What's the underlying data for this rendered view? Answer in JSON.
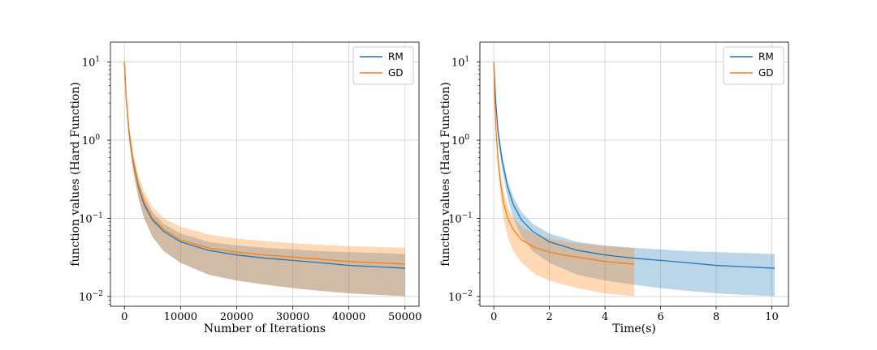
{
  "colors": {
    "rm": "#1f77b4",
    "gd": "#ff7f0e",
    "grid": "#d0d0d0"
  },
  "chart_data": [
    {
      "type": "line",
      "name": "iterations",
      "xlabel": "Number of Iterations",
      "ylabel": "function values (Hard Function)",
      "xlim": [
        -2500,
        52500
      ],
      "ylim": [
        0.0075,
        18
      ],
      "yscale": "log",
      "xticks": [
        0,
        10000,
        20000,
        30000,
        40000,
        50000
      ],
      "xticklabels": [
        "0",
        "10000",
        "20000",
        "30000",
        "40000",
        "50000"
      ],
      "yticks": [
        0.01,
        0.1,
        1,
        10
      ],
      "ytick_bases": [
        "10",
        "10",
        "10",
        "10"
      ],
      "ytick_exps": [
        "−2",
        "−1",
        "0",
        "1"
      ],
      "legend": [
        "RM",
        "GD"
      ],
      "legend_position": "top-right",
      "series": [
        {
          "name": "RM",
          "color_key": "rm",
          "x": [
            0,
            300,
            800,
            1500,
            2500,
            3500,
            5000,
            7000,
            10000,
            15000,
            20000,
            25000,
            30000,
            35000,
            40000,
            45000,
            50000
          ],
          "y": [
            10,
            3.5,
            1.3,
            0.55,
            0.25,
            0.15,
            0.095,
            0.068,
            0.05,
            0.039,
            0.034,
            0.031,
            0.029,
            0.027,
            0.025,
            0.024,
            0.023
          ],
          "lower": [
            10,
            3.0,
            1.0,
            0.42,
            0.18,
            0.1,
            0.058,
            0.038,
            0.027,
            0.019,
            0.016,
            0.0142,
            0.0128,
            0.0118,
            0.011,
            0.0105,
            0.0101
          ],
          "upper": [
            10,
            4.0,
            1.5,
            0.65,
            0.3,
            0.19,
            0.12,
            0.085,
            0.064,
            0.05,
            0.045,
            0.042,
            0.04,
            0.038,
            0.037,
            0.036,
            0.035
          ]
        },
        {
          "name": "GD",
          "color_key": "gd",
          "x": [
            0,
            300,
            800,
            1500,
            2500,
            3500,
            5000,
            7000,
            10000,
            15000,
            20000,
            25000,
            30000,
            35000,
            40000,
            45000,
            50000
          ],
          "y": [
            10,
            3.6,
            1.35,
            0.58,
            0.27,
            0.16,
            0.1,
            0.072,
            0.053,
            0.042,
            0.037,
            0.034,
            0.032,
            0.03,
            0.028,
            0.027,
            0.026
          ],
          "lower": [
            10,
            3.0,
            1.0,
            0.42,
            0.18,
            0.1,
            0.058,
            0.038,
            0.027,
            0.019,
            0.016,
            0.0142,
            0.0128,
            0.0118,
            0.011,
            0.0105,
            0.0101
          ],
          "upper": [
            10,
            4.2,
            1.6,
            0.72,
            0.35,
            0.22,
            0.14,
            0.1,
            0.078,
            0.062,
            0.055,
            0.051,
            0.048,
            0.046,
            0.044,
            0.043,
            0.042
          ]
        }
      ]
    },
    {
      "type": "line",
      "name": "time",
      "xlabel": "Time(s)",
      "ylabel": "function values (Hard Function)",
      "xlim": [
        -0.5,
        10.6
      ],
      "ylim": [
        0.0075,
        18
      ],
      "yscale": "log",
      "xticks": [
        0,
        2,
        4,
        6,
        8,
        10
      ],
      "xticklabels": [
        "0",
        "2",
        "4",
        "6",
        "8",
        "10"
      ],
      "yticks": [
        0.01,
        0.1,
        1,
        10
      ],
      "ytick_bases": [
        "10",
        "10",
        "10",
        "10"
      ],
      "ytick_exps": [
        "−2",
        "−1",
        "0",
        "1"
      ],
      "legend": [
        "RM",
        "GD"
      ],
      "legend_position": "top-right",
      "series": [
        {
          "name": "RM",
          "color_key": "rm",
          "x": [
            0,
            0.06,
            0.15,
            0.3,
            0.5,
            0.7,
            1.0,
            1.4,
            2.0,
            3.0,
            4.0,
            5.0,
            6.0,
            7.0,
            8.0,
            9.0,
            10.1
          ],
          "y": [
            10,
            3.5,
            1.3,
            0.55,
            0.25,
            0.15,
            0.095,
            0.068,
            0.05,
            0.039,
            0.034,
            0.031,
            0.029,
            0.027,
            0.025,
            0.024,
            0.023
          ],
          "lower": [
            10,
            3.0,
            1.0,
            0.42,
            0.18,
            0.1,
            0.058,
            0.038,
            0.027,
            0.019,
            0.016,
            0.0142,
            0.0128,
            0.0118,
            0.011,
            0.0105,
            0.0101
          ],
          "upper": [
            10,
            4.0,
            1.5,
            0.65,
            0.3,
            0.19,
            0.12,
            0.085,
            0.064,
            0.05,
            0.045,
            0.042,
            0.04,
            0.038,
            0.037,
            0.036,
            0.035
          ]
        },
        {
          "name": "GD",
          "color_key": "gd",
          "x": [
            0,
            0.03,
            0.08,
            0.15,
            0.25,
            0.35,
            0.5,
            0.7,
            1.0,
            1.5,
            2.0,
            2.5,
            3.0,
            3.5,
            4.0,
            4.5,
            5.05
          ],
          "y": [
            10,
            3.6,
            1.35,
            0.58,
            0.27,
            0.16,
            0.1,
            0.072,
            0.053,
            0.042,
            0.037,
            0.034,
            0.032,
            0.03,
            0.028,
            0.027,
            0.026
          ],
          "lower": [
            10,
            3.0,
            1.0,
            0.42,
            0.18,
            0.1,
            0.058,
            0.038,
            0.027,
            0.019,
            0.016,
            0.0142,
            0.0128,
            0.0118,
            0.011,
            0.0105,
            0.0101
          ],
          "upper": [
            10,
            4.2,
            1.6,
            0.72,
            0.35,
            0.22,
            0.14,
            0.1,
            0.078,
            0.062,
            0.055,
            0.051,
            0.048,
            0.046,
            0.044,
            0.043,
            0.042
          ]
        }
      ]
    }
  ]
}
